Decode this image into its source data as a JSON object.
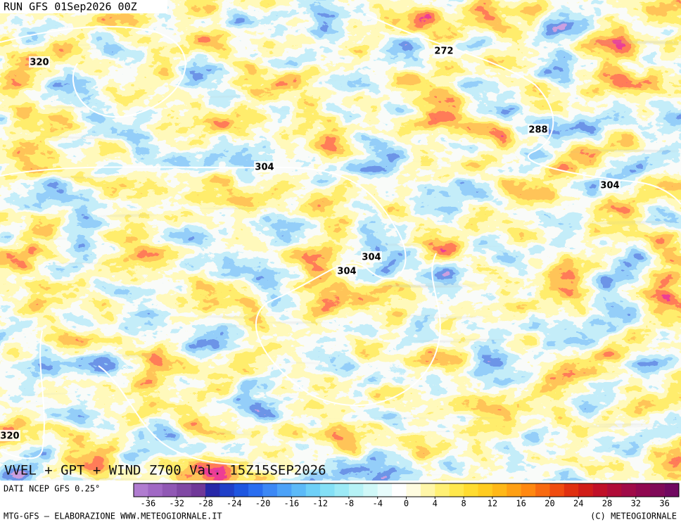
{
  "header": {
    "run": "RUN GFS 01Sep2026 00Z"
  },
  "map": {
    "title": "VVEL + GPT + WIND Z700 Val. 15Z15SEP2026",
    "contour_labels": [
      "320",
      "272",
      "288",
      "304",
      "304",
      "304",
      "304",
      "320"
    ]
  },
  "legend": {
    "source": "DATI NCEP GFS 0.25°",
    "lim": [
      -38,
      38
    ],
    "ticks": [
      -36,
      -32,
      -28,
      -24,
      -20,
      -16,
      -12,
      -8,
      -4,
      0,
      4,
      8,
      12,
      16,
      20,
      24,
      28,
      32,
      36
    ],
    "colors": [
      "#b07cd0",
      "#a068c4",
      "#9058b4",
      "#8048a4",
      "#703898",
      "#2828a8",
      "#2040c8",
      "#1e56e0",
      "#2a6ef0",
      "#3c88f5",
      "#4ca2f8",
      "#5cbaf8",
      "#6ed0f8",
      "#84e0f6",
      "#9ceaf6",
      "#b6f2f6",
      "#d0f8f8",
      "#e8fcfc",
      "#ffffff",
      "#fffce0",
      "#fff6a8",
      "#fff074",
      "#ffe84c",
      "#ffdc30",
      "#ffcc20",
      "#ffb818",
      "#ffa014",
      "#ff8810",
      "#f86a10",
      "#f04c10",
      "#e03010",
      "#d01c18",
      "#c01028",
      "#b00c38",
      "#a00a48",
      "#900850",
      "#800a58",
      "#700860"
    ]
  },
  "footer": {
    "left": "MTG-GFS — ELABORAZIONE WWW.METEOGIORNALE.IT",
    "right": "(C) METEOGIORNALE"
  }
}
